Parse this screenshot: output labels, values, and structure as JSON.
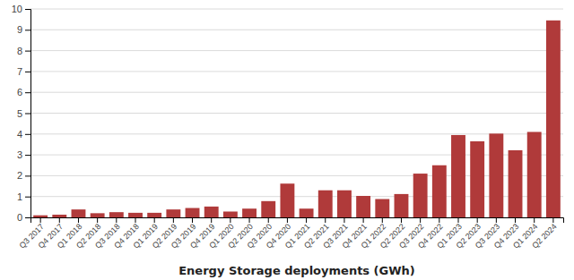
{
  "chart_data": {
    "type": "bar",
    "xlabel": "Energy Storage deployments (GWh)",
    "categories": [
      "Q3 2017",
      "Q4 2017",
      "Q1 2018",
      "Q2 2018",
      "Q3 2018",
      "Q4 2018",
      "Q1 2019",
      "Q2 2019",
      "Q3 2019",
      "Q4 2019",
      "Q1 2020",
      "Q2 2020",
      "Q3 2020",
      "Q4 2020",
      "Q1 2021",
      "Q2 2021",
      "Q3 2021",
      "Q4 2021",
      "Q1 2022",
      "Q2 2022",
      "Q3 2022",
      "Q4 2022",
      "Q1 2023",
      "Q2 2023",
      "Q3 2023",
      "Q4 2023",
      "Q1 2024",
      "Q2 2024"
    ],
    "values": [
      0.1,
      0.13,
      0.38,
      0.2,
      0.25,
      0.22,
      0.22,
      0.38,
      0.45,
      0.52,
      0.28,
      0.42,
      0.78,
      1.62,
      0.42,
      1.3,
      1.3,
      1.03,
      0.88,
      1.12,
      2.1,
      2.5,
      3.95,
      3.65,
      4.02,
      3.22,
      4.1,
      9.45
    ],
    "color": "#b03a3a",
    "ylim": [
      0,
      10
    ],
    "yticks": [
      0,
      1,
      2,
      3,
      4,
      5,
      6,
      7,
      8,
      9,
      10
    ],
    "grid": true
  }
}
